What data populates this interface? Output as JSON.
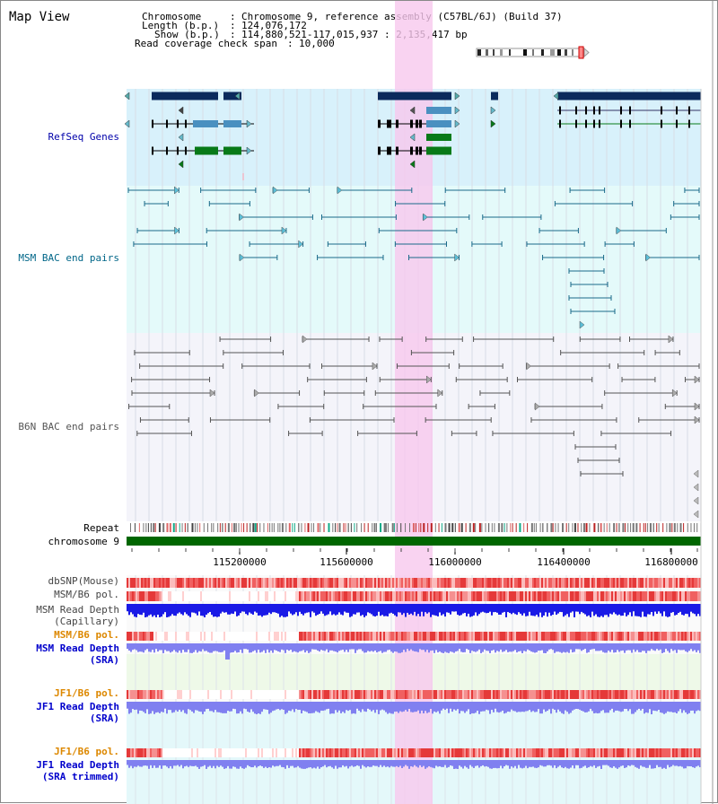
{
  "title": "Map View",
  "header": {
    "chromosome_key": "Chromosome",
    "chromosome_value": "Chromosome 9, reference assembly (C57BL/6J) (Build 37)",
    "length_key": "Length (b.p.)",
    "length_value": "124,076,172",
    "show_key": "Show (b.p.)",
    "show_value": "114,880,521-117,015,937 : 2,135,417 bp",
    "coverage_key": "Read coverage check span",
    "coverage_value": "10,000"
  },
  "tracks": {
    "refseq": "RefSeq Genes",
    "msm_bac": "MSM BAC end pairs",
    "b6n_bac": "B6N BAC end pairs",
    "repeat": "Repeat",
    "chromosome": "chromosome 9",
    "dbsnp": "dbSNP(Mouse)",
    "msm_b6_pol": "MSM/B6 pol.",
    "msm_read_cap_1": "MSM Read Depth",
    "msm_read_cap_2": "(Capillary)",
    "msm_b6_pol2": "MSM/B6 pol.",
    "msm_read_sra_1": "MSM Read Depth",
    "msm_read_sra_2": "(SRA)",
    "jf1_b6_pol": "JF1/B6 pol.",
    "jf1_read_sra_1": "JF1 Read Depth",
    "jf1_read_sra_2": "(SRA)",
    "jf1_b6_pol2": "JF1/B6 pol.",
    "jf1_read_trim_1": "JF1 Read Depth",
    "jf1_read_trim_2": "(SRA trimmed)"
  },
  "axis": {
    "ticks": [
      "115200000",
      "115600000",
      "116000000",
      "116400000",
      "116800000"
    ]
  },
  "colors": {
    "refseq_label": "#0000aa",
    "msm_label": "#006688",
    "b6n_label": "#555555",
    "orange_label": "#dd8800",
    "blue_label": "#0000cc",
    "highlight": "#f7c8ee",
    "refseq_bg": "#d8f1fb",
    "msm_bg": "#e4fafa",
    "b6n_bg": "#f4f4fa",
    "chrom_green": "#006600"
  }
}
